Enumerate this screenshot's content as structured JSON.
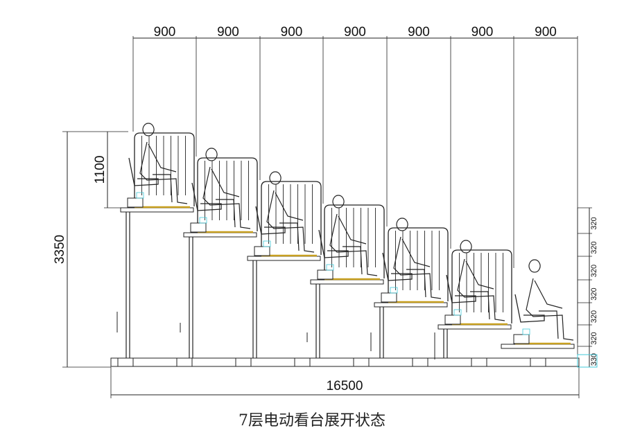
{
  "drawing": {
    "tier_count": 7,
    "tier_widths": [
      "900",
      "900",
      "900",
      "900",
      "900",
      "900",
      "900"
    ],
    "total_length": "16500",
    "total_height": "3350",
    "railing_height": "1100",
    "step_heights": [
      "320",
      "320",
      "320",
      "320",
      "320",
      "320",
      "330"
    ],
    "colors": {
      "line": "#222222",
      "platform": "#c8a020",
      "accent": "#40c8d8"
    }
  },
  "caption": "7层电动看台展开状态"
}
